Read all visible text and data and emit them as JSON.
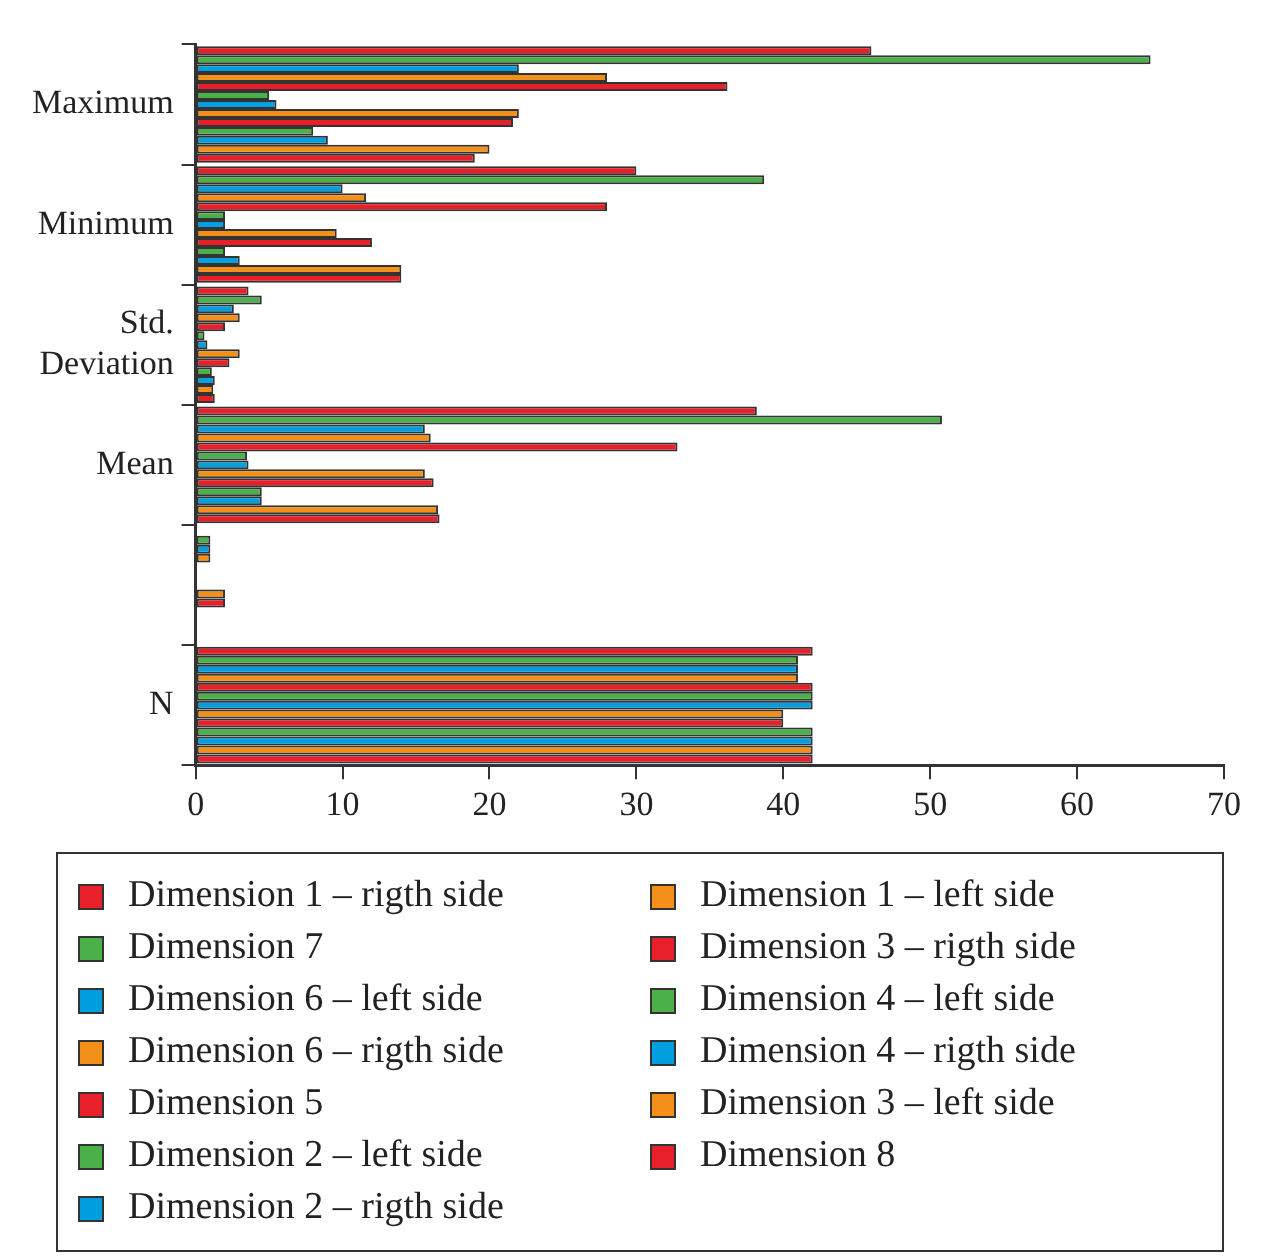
{
  "chart_data": {
    "type": "bar",
    "orientation": "horizontal",
    "categories": [
      "Maximum",
      "Minimum",
      "Std. Deviation",
      "Mean",
      null,
      "N"
    ],
    "series": [
      {
        "name": "Dimension 1 – rigth side",
        "color": "#e8202a",
        "values": [
          46,
          30,
          3.6,
          38.2,
          null,
          42
        ]
      },
      {
        "name": "Dimension 7",
        "color": "#4cb04a",
        "values": [
          65,
          38.7,
          4.5,
          50.8,
          1,
          41
        ]
      },
      {
        "name": "Dimension 6 – left side",
        "color": "#00a0e0",
        "values": [
          22,
          10,
          2.6,
          15.6,
          1,
          41
        ]
      },
      {
        "name": "Dimension 6 – rigth side",
        "color": "#f39019",
        "values": [
          28,
          11.6,
          3,
          16,
          1,
          41
        ]
      },
      {
        "name": "Dimension 5",
        "color": "#e8202a",
        "values": [
          36.2,
          28,
          2,
          32.8,
          null,
          42
        ]
      },
      {
        "name": "Dimension 2 – left side",
        "color": "#4cb04a",
        "values": [
          5,
          2,
          0.6,
          3.5,
          null,
          42
        ]
      },
      {
        "name": "Dimension 2 – rigth side",
        "color": "#00a0e0",
        "values": [
          5.5,
          2,
          0.8,
          3.6,
          null,
          42
        ]
      },
      {
        "name": "Dimension 1 – left side",
        "color": "#f39019",
        "values": [
          22,
          9.6,
          3,
          15.6,
          2,
          40
        ]
      },
      {
        "name": "Dimension 3 – rigth side",
        "color": "#e8202a",
        "values": [
          21.6,
          12,
          2.3,
          16.2,
          2,
          40
        ]
      },
      {
        "name": "Dimension 4 – left side",
        "color": "#4cb04a",
        "values": [
          8,
          2,
          1.1,
          4.5,
          null,
          42
        ]
      },
      {
        "name": "Dimension 4 – rigth side",
        "color": "#00a0e0",
        "values": [
          9,
          3,
          1.3,
          4.5,
          null,
          42
        ]
      },
      {
        "name": "Dimension 3 – left side",
        "color": "#f39019",
        "values": [
          20,
          14,
          1.2,
          16.5,
          null,
          42
        ]
      },
      {
        "name": "Dimension 8",
        "color": "#e8202a",
        "values": [
          19,
          14,
          1.3,
          16.6,
          null,
          42
        ]
      }
    ],
    "xlim": [
      0,
      70
    ],
    "xticks": [
      0,
      10,
      20,
      30,
      40,
      50,
      60,
      70
    ],
    "grid": false,
    "legend": "bottom"
  }
}
